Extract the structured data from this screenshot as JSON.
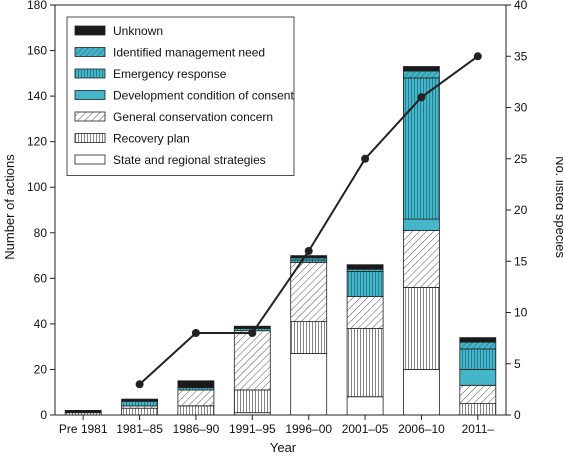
{
  "chart_data": {
    "type": "bar",
    "stacked": true,
    "categories": [
      "Pre 1981",
      "1981–85",
      "1986–90",
      "1991–95",
      "1996–00",
      "2001–05",
      "2006–10",
      "2011–"
    ],
    "xlabel": "Year",
    "ylabel": "Number of actions",
    "y2label": "No. listed species",
    "ylim": [
      0,
      180
    ],
    "y2lim": [
      0,
      40
    ],
    "yticks": [
      0,
      20,
      40,
      60,
      80,
      100,
      120,
      140,
      160,
      180
    ],
    "y2ticks": [
      0,
      5,
      10,
      15,
      20,
      25,
      30,
      35,
      40
    ],
    "legend_position": "top-left",
    "series": [
      {
        "name": "State and regional strategies",
        "pattern": "empty",
        "values": [
          0,
          0,
          0,
          1,
          27,
          8,
          20,
          0
        ]
      },
      {
        "name": "Recovery plan",
        "pattern": "vertical-lines",
        "values": [
          1,
          3,
          4,
          10,
          14,
          30,
          36,
          5
        ]
      },
      {
        "name": "General conservation concern",
        "pattern": "diagonal-lines",
        "values": [
          0,
          1,
          7,
          26,
          26,
          14,
          25,
          8
        ]
      },
      {
        "name": "Development condition of consent",
        "pattern": "solid-teal",
        "values": [
          0,
          0,
          0,
          0,
          0,
          0,
          5,
          7
        ]
      },
      {
        "name": "Emergency response",
        "pattern": "teal-vertical-lines",
        "values": [
          0,
          2,
          1,
          1,
          1,
          11,
          62,
          9
        ]
      },
      {
        "name": "Identified management need",
        "pattern": "teal-diagonal-lines",
        "values": [
          0,
          0,
          0,
          0,
          1,
          1,
          3,
          3
        ]
      },
      {
        "name": "Unknown",
        "pattern": "solid-black",
        "values": [
          1,
          1,
          3,
          1,
          1,
          2,
          2,
          2
        ]
      }
    ],
    "line_series": {
      "axis": "right",
      "x_indices": [
        1,
        2,
        3,
        4,
        5,
        6,
        7
      ],
      "values": [
        3,
        8,
        8,
        16,
        25,
        31,
        35
      ]
    },
    "colors": {
      "teal": "#45b6c9",
      "black": "#1a1a1a",
      "hatch": "#555555"
    }
  }
}
